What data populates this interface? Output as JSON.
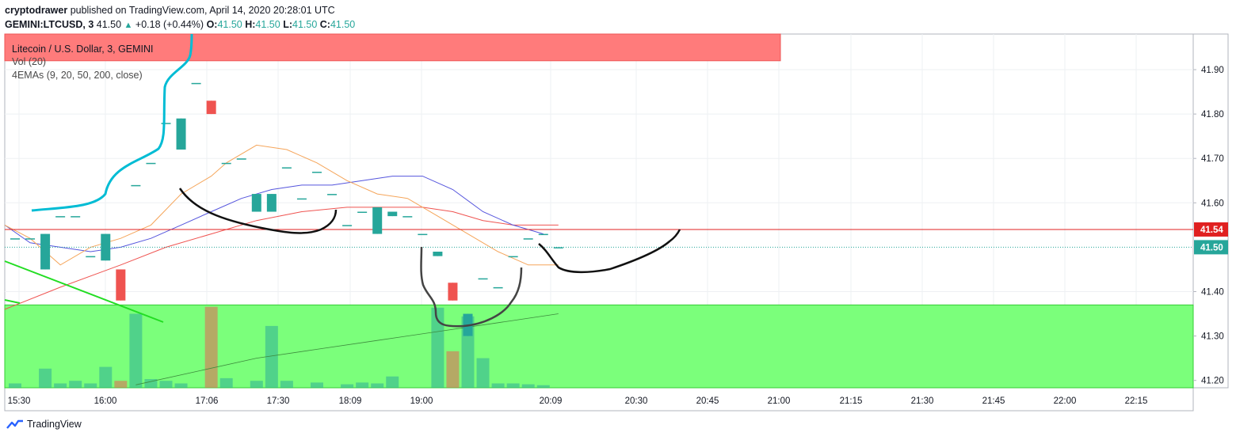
{
  "header": {
    "author": "cryptodrawer",
    "published": "published on TradingView.com, April 14, 2020 20:28:01 UTC",
    "symbol": "GEMINI:LTCUSD, 3",
    "last": "41.50",
    "change": "+0.18 (+0.44%)",
    "o_label": "O:",
    "o": "41.50",
    "h_label": "H:",
    "h": "41.50",
    "l_label": "L:",
    "l": "41.50",
    "c_label": "C:",
    "c": "41.50"
  },
  "legend": {
    "title": "Litecoin / U.S. Dollar, 3, GEMINI",
    "vol": "Vol (20)",
    "emas": "4EMAs (9, 20, 50, 200, close)"
  },
  "footer": {
    "brand": "TradingView"
  },
  "colors": {
    "up": "#26a69a",
    "down": "#ef5350",
    "resistance_zone": "#ff7b7b",
    "support_zone": "#7bff7b",
    "level_line": "#e02020",
    "last_price": "#26a69a",
    "ema9": "#f5a55a",
    "ema20": "#5555dd",
    "ema50": "#ef5350",
    "ema200": "#3d8b3d",
    "drawing_black": "#111111",
    "drawing_cyan": "#00bcd4",
    "drawing_green": "#22dd22"
  },
  "chart_data": {
    "type": "candlestick",
    "ylim": [
      41.18,
      41.98
    ],
    "y_ticks": [
      "41.90",
      "41.80",
      "41.70",
      "41.60",
      "41.40",
      "41.30",
      "41.20"
    ],
    "x_ticks": [
      "15:30",
      "16:00",
      "17:06",
      "17:30",
      "18:09",
      "19:00",
      "20:09",
      "20:30",
      "20:45",
      "21:00",
      "21:15",
      "21:30",
      "21:45",
      "22:00",
      "22:15"
    ],
    "price_labels": [
      {
        "value": 41.54,
        "text": "41.54",
        "color": "#e02020"
      },
      {
        "value": 41.5,
        "text": "41.50",
        "color": "#26a69a"
      }
    ],
    "horizontal_level": 41.54,
    "last_price": 41.5,
    "resistance_zone": {
      "top": 41.98,
      "bottom": 41.92
    },
    "support_zone": {
      "top": 41.37,
      "bottom": 41.18
    },
    "candles": [
      {
        "t": 0,
        "o": 41.52,
        "h": 41.52,
        "l": 41.52,
        "c": 41.52
      },
      {
        "t": 1,
        "o": 41.52,
        "h": 41.52,
        "l": 41.52,
        "c": 41.52
      },
      {
        "t": 2,
        "o": 41.45,
        "h": 41.53,
        "l": 41.45,
        "c": 41.53
      },
      {
        "t": 3,
        "o": 41.57,
        "h": 41.57,
        "l": 41.57,
        "c": 41.57
      },
      {
        "t": 4,
        "o": 41.57,
        "h": 41.57,
        "l": 41.57,
        "c": 41.57
      },
      {
        "t": 5,
        "o": 41.48,
        "h": 41.48,
        "l": 41.48,
        "c": 41.48
      },
      {
        "t": 6,
        "o": 41.47,
        "h": 41.53,
        "l": 41.47,
        "c": 41.53
      },
      {
        "t": 7,
        "o": 41.45,
        "h": 41.45,
        "l": 41.38,
        "c": 41.38
      },
      {
        "t": 8,
        "o": 41.64,
        "h": 41.64,
        "l": 41.64,
        "c": 41.64
      },
      {
        "t": 9,
        "o": 41.69,
        "h": 41.69,
        "l": 41.69,
        "c": 41.69
      },
      {
        "t": 10,
        "o": 41.78,
        "h": 41.78,
        "l": 41.78,
        "c": 41.78
      },
      {
        "t": 11,
        "o": 41.72,
        "h": 41.79,
        "l": 41.72,
        "c": 41.79
      },
      {
        "t": 12,
        "o": 41.87,
        "h": 41.87,
        "l": 41.87,
        "c": 41.87
      },
      {
        "t": 13,
        "o": 41.83,
        "h": 41.83,
        "l": 41.8,
        "c": 41.8
      },
      {
        "t": 14,
        "o": 41.69,
        "h": 41.69,
        "l": 41.69,
        "c": 41.69
      },
      {
        "t": 15,
        "o": 41.7,
        "h": 41.7,
        "l": 41.7,
        "c": 41.7
      },
      {
        "t": 16,
        "o": 41.58,
        "h": 41.62,
        "l": 41.58,
        "c": 41.62
      },
      {
        "t": 17,
        "o": 41.58,
        "h": 41.62,
        "l": 41.58,
        "c": 41.62
      },
      {
        "t": 18,
        "o": 41.68,
        "h": 41.68,
        "l": 41.68,
        "c": 41.68
      },
      {
        "t": 19,
        "o": 41.61,
        "h": 41.61,
        "l": 41.61,
        "c": 41.61
      },
      {
        "t": 20,
        "o": 41.67,
        "h": 41.67,
        "l": 41.67,
        "c": 41.67
      },
      {
        "t": 21,
        "o": 41.62,
        "h": 41.62,
        "l": 41.62,
        "c": 41.62
      },
      {
        "t": 22,
        "o": 41.55,
        "h": 41.55,
        "l": 41.55,
        "c": 41.55
      },
      {
        "t": 23,
        "o": 41.58,
        "h": 41.58,
        "l": 41.58,
        "c": 41.58
      },
      {
        "t": 24,
        "o": 41.53,
        "h": 41.59,
        "l": 41.53,
        "c": 41.59
      },
      {
        "t": 25,
        "o": 41.57,
        "h": 41.58,
        "l": 41.57,
        "c": 41.58
      },
      {
        "t": 26,
        "o": 41.57,
        "h": 41.57,
        "l": 41.57,
        "c": 41.57
      },
      {
        "t": 27,
        "o": 41.53,
        "h": 41.53,
        "l": 41.53,
        "c": 41.53
      },
      {
        "t": 28,
        "o": 41.48,
        "h": 41.49,
        "l": 41.48,
        "c": 41.49
      },
      {
        "t": 29,
        "o": 41.42,
        "h": 41.42,
        "l": 41.38,
        "c": 41.38
      },
      {
        "t": 30,
        "o": 41.3,
        "h": 41.35,
        "l": 41.3,
        "c": 41.35
      },
      {
        "t": 31,
        "o": 41.43,
        "h": 41.43,
        "l": 41.43,
        "c": 41.43
      },
      {
        "t": 32,
        "o": 41.41,
        "h": 41.41,
        "l": 41.41,
        "c": 41.41
      },
      {
        "t": 33,
        "o": 41.48,
        "h": 41.48,
        "l": 41.48,
        "c": 41.48
      },
      {
        "t": 34,
        "o": 41.52,
        "h": 41.52,
        "l": 41.52,
        "c": 41.52
      },
      {
        "t": 35,
        "o": 41.53,
        "h": 41.53,
        "l": 41.53,
        "c": 41.53
      },
      {
        "t": 36,
        "o": 41.5,
        "h": 41.5,
        "l": 41.5,
        "c": 41.5
      }
    ],
    "volume_ylim": [
      0,
      1.0
    ],
    "volume": [
      {
        "t": 0,
        "v": 0.05,
        "dir": "up"
      },
      {
        "t": 2,
        "v": 0.22,
        "dir": "up"
      },
      {
        "t": 3,
        "v": 0.05,
        "dir": "up"
      },
      {
        "t": 4,
        "v": 0.08,
        "dir": "up"
      },
      {
        "t": 5,
        "v": 0.05,
        "dir": "up"
      },
      {
        "t": 6,
        "v": 0.24,
        "dir": "up"
      },
      {
        "t": 7,
        "v": 0.08,
        "dir": "down"
      },
      {
        "t": 8,
        "v": 0.85,
        "dir": "up"
      },
      {
        "t": 9,
        "v": 0.1,
        "dir": "up"
      },
      {
        "t": 10,
        "v": 0.08,
        "dir": "up"
      },
      {
        "t": 11,
        "v": 0.05,
        "dir": "up"
      },
      {
        "t": 13,
        "v": 0.93,
        "dir": "down"
      },
      {
        "t": 14,
        "v": 0.11,
        "dir": "up"
      },
      {
        "t": 16,
        "v": 0.08,
        "dir": "up"
      },
      {
        "t": 17,
        "v": 0.71,
        "dir": "up"
      },
      {
        "t": 18,
        "v": 0.08,
        "dir": "up"
      },
      {
        "t": 20,
        "v": 0.06,
        "dir": "up"
      },
      {
        "t": 22,
        "v": 0.04,
        "dir": "up"
      },
      {
        "t": 23,
        "v": 0.06,
        "dir": "up"
      },
      {
        "t": 24,
        "v": 0.05,
        "dir": "up"
      },
      {
        "t": 25,
        "v": 0.13,
        "dir": "up"
      },
      {
        "t": 28,
        "v": 0.92,
        "dir": "up"
      },
      {
        "t": 29,
        "v": 0.42,
        "dir": "down"
      },
      {
        "t": 30,
        "v": 0.82,
        "dir": "up"
      },
      {
        "t": 31,
        "v": 0.34,
        "dir": "up"
      },
      {
        "t": 32,
        "v": 0.05,
        "dir": "up"
      },
      {
        "t": 33,
        "v": 0.05,
        "dir": "up"
      },
      {
        "t": 34,
        "v": 0.04,
        "dir": "up"
      },
      {
        "t": 35,
        "v": 0.03,
        "dir": "up"
      }
    ],
    "ema9": [
      [
        -1,
        41.55
      ],
      [
        1,
        41.52
      ],
      [
        3,
        41.46
      ],
      [
        5,
        41.5
      ],
      [
        7,
        41.52
      ],
      [
        9,
        41.55
      ],
      [
        11,
        41.62
      ],
      [
        13,
        41.66
      ],
      [
        14,
        41.69
      ],
      [
        16,
        41.73
      ],
      [
        18,
        41.72
      ],
      [
        20,
        41.69
      ],
      [
        22,
        41.65
      ],
      [
        24,
        41.62
      ],
      [
        26,
        41.61
      ],
      [
        28,
        41.57
      ],
      [
        30,
        41.53
      ],
      [
        32,
        41.49
      ],
      [
        34,
        41.46
      ],
      [
        36,
        41.46
      ]
    ],
    "ema20": [
      [
        -1,
        41.55
      ],
      [
        1,
        41.51
      ],
      [
        3,
        41.5
      ],
      [
        5,
        41.49
      ],
      [
        7,
        41.5
      ],
      [
        9,
        41.52
      ],
      [
        11,
        41.55
      ],
      [
        13,
        41.58
      ],
      [
        15,
        41.61
      ],
      [
        17,
        41.63
      ],
      [
        19,
        41.64
      ],
      [
        21,
        41.64
      ],
      [
        23,
        41.65
      ],
      [
        25,
        41.66
      ],
      [
        27,
        41.66
      ],
      [
        29,
        41.63
      ],
      [
        31,
        41.58
      ],
      [
        33,
        41.55
      ],
      [
        35,
        41.53
      ]
    ],
    "ema50": [
      [
        -1,
        41.36
      ],
      [
        3,
        41.41
      ],
      [
        7,
        41.46
      ],
      [
        10,
        41.5
      ],
      [
        13,
        41.53
      ],
      [
        16,
        41.56
      ],
      [
        19,
        41.58
      ],
      [
        22,
        41.59
      ],
      [
        25,
        41.59
      ],
      [
        27,
        41.59
      ],
      [
        29,
        41.58
      ],
      [
        31,
        41.56
      ],
      [
        33,
        41.55
      ],
      [
        35,
        41.55
      ],
      [
        36,
        41.55
      ]
    ],
    "ema200": [
      [
        8,
        41.19
      ],
      [
        12,
        41.22
      ],
      [
        16,
        41.25
      ],
      [
        20,
        41.27
      ],
      [
        24,
        41.29
      ],
      [
        28,
        41.31
      ],
      [
        32,
        41.33
      ],
      [
        36,
        41.35
      ]
    ]
  }
}
